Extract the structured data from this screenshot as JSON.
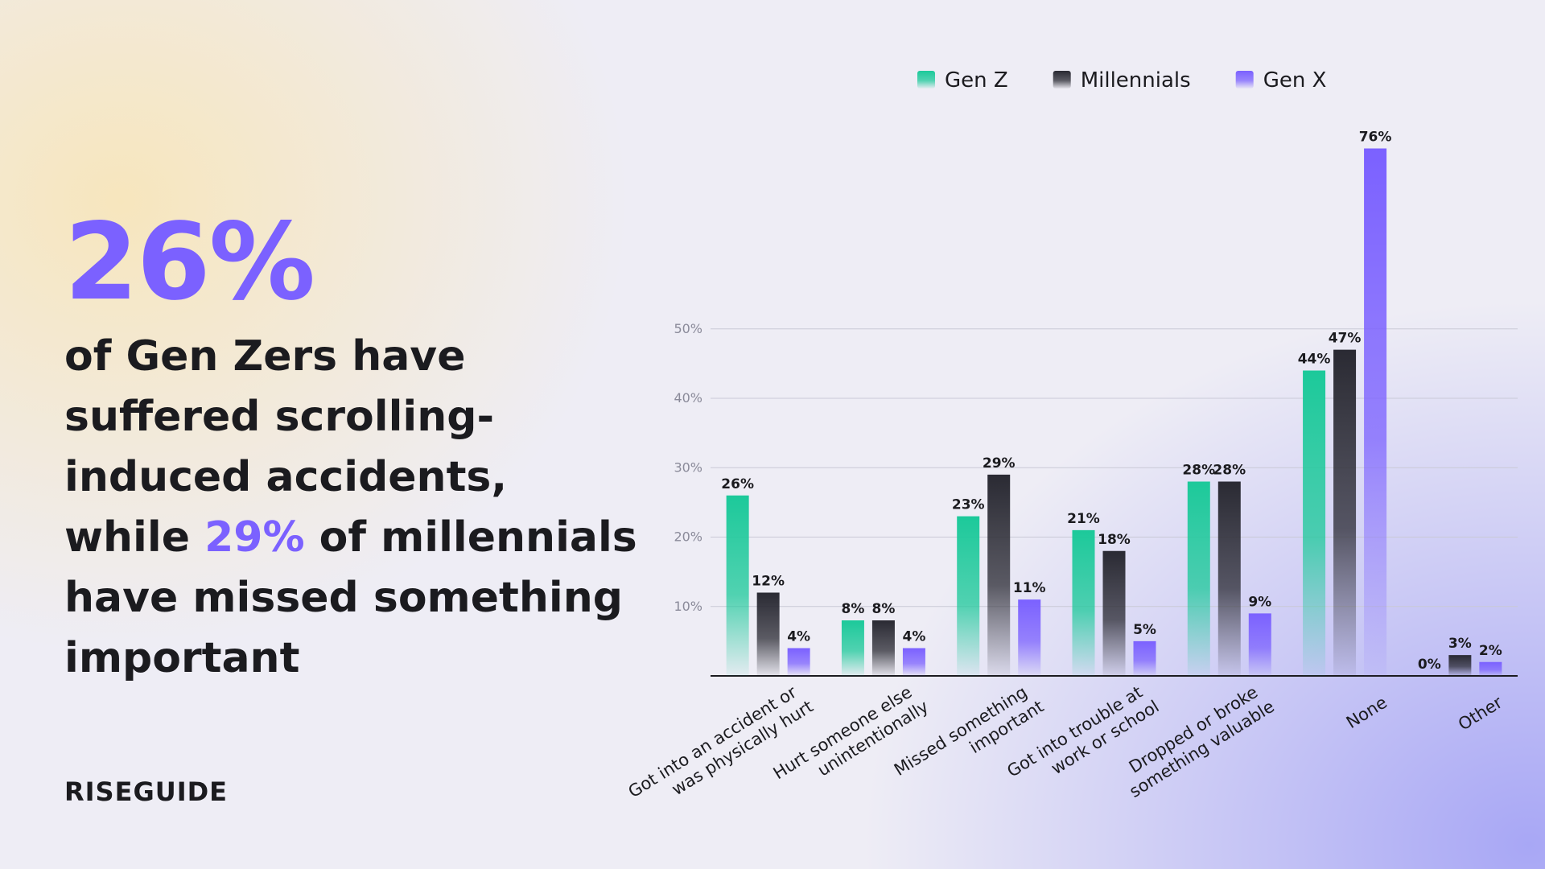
{
  "headline": {
    "stat": "26%",
    "parts": [
      "of Gen Zers have suffered scrolling-induced accidents, while ",
      "29%",
      " of millennials have missed something important"
    ]
  },
  "brand": "RISEGUIDE",
  "chart_data": {
    "type": "bar",
    "categories": [
      "Got into an accident or was physically hurt",
      "Hurt someone else unintentionally",
      "Missed something important",
      "Got into trouble at work or school",
      "Dropped or broke something valuable",
      "None",
      "Other"
    ],
    "series": [
      {
        "name": "Gen Z",
        "color": "#1cc99a",
        "values": [
          26,
          8,
          23,
          21,
          28,
          44,
          0
        ],
        "value_labels": [
          "26%",
          "8%",
          "23%",
          "21%",
          "28%",
          "44%",
          "0%"
        ]
      },
      {
        "name": "Millennials",
        "color": "#2a2a33",
        "values": [
          12,
          8,
          29,
          18,
          28,
          47,
          3
        ],
        "value_labels": [
          "12%",
          "8%",
          "29%",
          "18%",
          "28%",
          "47%",
          "3%"
        ]
      },
      {
        "name": "Gen X",
        "color": "#7b61ff",
        "values": [
          4,
          4,
          11,
          5,
          9,
          76,
          2
        ],
        "value_labels": [
          "4%",
          "4%",
          "11%",
          "5%",
          "9%",
          "76%",
          "2%"
        ]
      }
    ],
    "ylim": [
      0,
      80
    ],
    "yticks": [
      {
        "value": 10,
        "label": "10%"
      },
      {
        "value": 20,
        "label": "20%"
      },
      {
        "value": 30,
        "label": "30%"
      },
      {
        "value": 40,
        "label": "40%"
      },
      {
        "value": 50,
        "label": "50%"
      }
    ],
    "grid": true,
    "legend": "top"
  }
}
